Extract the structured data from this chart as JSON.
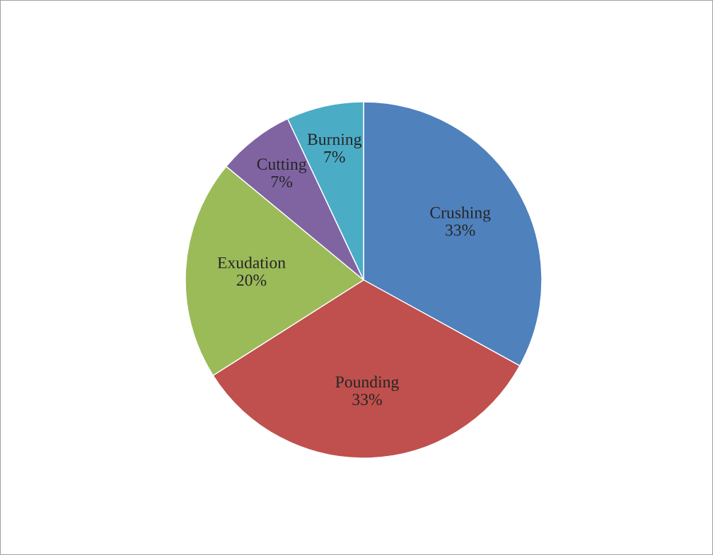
{
  "chart_data": {
    "type": "pie",
    "categories": [
      "Crushing",
      "Pounding",
      "Exudation",
      "Cutting",
      "Burning"
    ],
    "values": [
      33,
      33,
      20,
      7,
      7
    ],
    "value_labels": [
      "33%",
      "33%",
      "20%",
      "7%",
      "7%"
    ],
    "colors": [
      "#4f81bd",
      "#c0504d",
      "#9bbb59",
      "#8064a2",
      "#4bacc6"
    ],
    "legend": false
  }
}
